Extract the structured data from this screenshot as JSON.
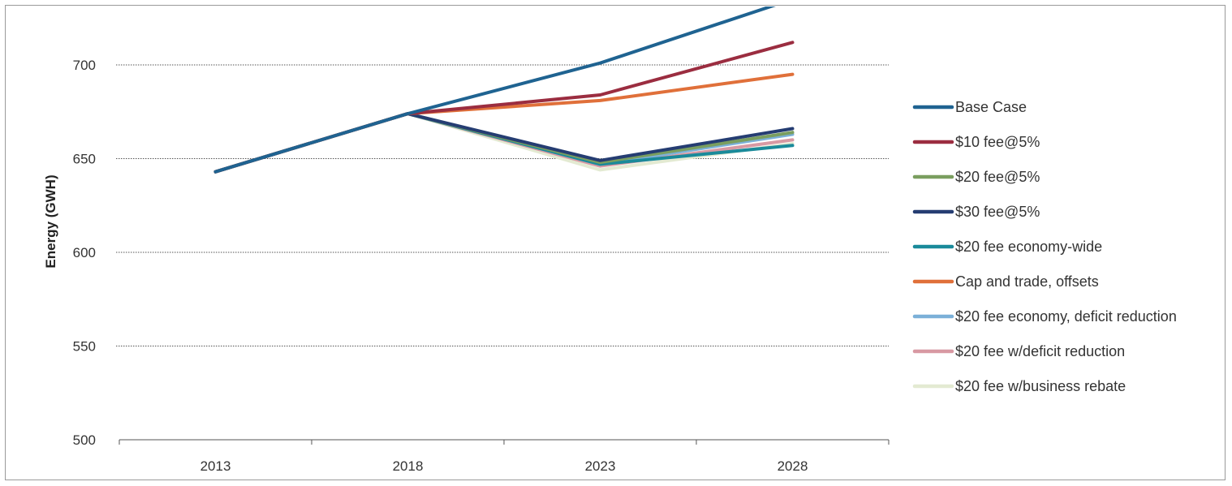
{
  "chart_data": {
    "type": "line",
    "title": "",
    "xlabel": "",
    "ylabel": "Energy (GWH)",
    "categories": [
      "2013",
      "2018",
      "2023",
      "2028"
    ],
    "ylim": [
      500,
      720
    ],
    "yticks": [
      500,
      550,
      600,
      650,
      700
    ],
    "grid": "horizontal dotted",
    "legend_position": "right",
    "series": [
      {
        "name": "Base Case",
        "color": "#1f6391",
        "values": [
          643,
          674,
          701,
          735
        ]
      },
      {
        "name": "$10 fee@5%",
        "color": "#9b2d40",
        "values": [
          643,
          674,
          684,
          712
        ]
      },
      {
        "name": "$20 fee@5%",
        "color": "#7a9e5f",
        "values": [
          643,
          674,
          648,
          664
        ]
      },
      {
        "name": "$30 fee@5%",
        "color": "#253d72",
        "values": [
          643,
          674,
          649,
          666
        ]
      },
      {
        "name": "$20 fee economy-wide",
        "color": "#1a8a9a",
        "values": [
          643,
          674,
          647,
          657
        ]
      },
      {
        "name": "Cap and trade, offsets",
        "color": "#e0703a",
        "values": [
          643,
          674,
          681,
          695
        ]
      },
      {
        "name": "$20 fee economy, deficit reduction",
        "color": "#7bb0d8",
        "values": [
          643,
          674,
          647,
          663
        ]
      },
      {
        "name": "$20 fee w/deficit reduction",
        "color": "#d899a3",
        "values": [
          643,
          674,
          646,
          660
        ]
      },
      {
        "name": "$20 fee w/business rebate",
        "color": "#e3ead2",
        "values": [
          643,
          674,
          644,
          658
        ]
      }
    ]
  }
}
